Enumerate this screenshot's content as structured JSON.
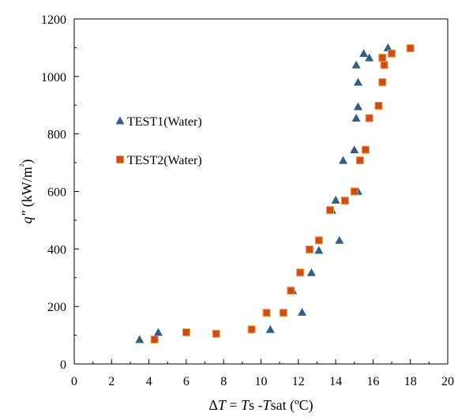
{
  "chart_data": {
    "type": "scatter",
    "title": "",
    "xlabel": "ΔT = Ts -Tsat (ºC)",
    "ylabel": "q\" (kW/m²)",
    "xlim": [
      0,
      20
    ],
    "ylim": [
      0,
      1200
    ],
    "xticks": [
      0,
      2,
      4,
      6,
      8,
      10,
      12,
      14,
      16,
      18,
      20
    ],
    "yticks": [
      0,
      200,
      400,
      600,
      800,
      1000,
      1200
    ],
    "grid": false,
    "legend_position": "left",
    "series": [
      {
        "name": "TEST1(Water)",
        "marker": "triangle",
        "color": "#2e5f8a",
        "points": [
          [
            3.5,
            85
          ],
          [
            4.5,
            110
          ],
          [
            10.5,
            120
          ],
          [
            12.2,
            180
          ],
          [
            11.7,
            255
          ],
          [
            12.7,
            318
          ],
          [
            13.1,
            395
          ],
          [
            14.2,
            430
          ],
          [
            13.8,
            535
          ],
          [
            14.0,
            570
          ],
          [
            15.2,
            600
          ],
          [
            15.0,
            745
          ],
          [
            14.4,
            708
          ],
          [
            15.1,
            855
          ],
          [
            15.2,
            895
          ],
          [
            15.2,
            980
          ],
          [
            15.1,
            1040
          ],
          [
            15.5,
            1080
          ],
          [
            15.8,
            1065
          ],
          [
            16.8,
            1100
          ]
        ]
      },
      {
        "name": "TEST2(Water)",
        "marker": "square",
        "color": "#d24a1a",
        "points": [
          [
            4.3,
            85
          ],
          [
            6.0,
            110
          ],
          [
            7.6,
            105
          ],
          [
            9.5,
            120
          ],
          [
            10.3,
            178
          ],
          [
            11.2,
            178
          ],
          [
            11.6,
            255
          ],
          [
            12.1,
            318
          ],
          [
            12.6,
            398
          ],
          [
            13.1,
            430
          ],
          [
            13.7,
            535
          ],
          [
            14.5,
            568
          ],
          [
            15.0,
            600
          ],
          [
            15.3,
            708
          ],
          [
            15.6,
            745
          ],
          [
            15.8,
            855
          ],
          [
            16.3,
            898
          ],
          [
            16.5,
            980
          ],
          [
            16.6,
            1040
          ],
          [
            16.5,
            1065
          ],
          [
            17.0,
            1080
          ],
          [
            18.0,
            1098
          ]
        ]
      }
    ]
  }
}
